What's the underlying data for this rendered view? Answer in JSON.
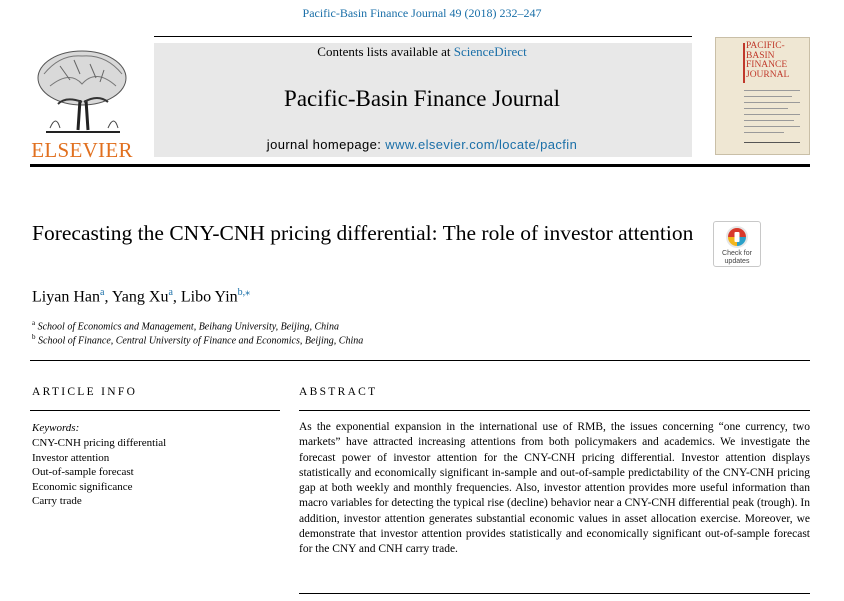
{
  "header": {
    "citation": "Pacific-Basin Finance Journal 49 (2018) 232–247",
    "contents_prefix": "Contents lists available at ",
    "contents_link": "ScienceDirect",
    "journal_title": "Pacific-Basin Finance Journal",
    "homepage_label": "journal homepage: ",
    "homepage_url": "www.elsevier.com/locate/pacfin"
  },
  "publisher_logo": {
    "wordmark": "ELSEVIER",
    "color": "#e1701f"
  },
  "cover": {
    "title_lines": [
      "PACIFIC-",
      "BASIN",
      "FINANCE",
      "JOURNAL"
    ],
    "accent": "#c0392b"
  },
  "check_updates": {
    "line1": "Check for",
    "line2": "updates"
  },
  "article": {
    "title": "Forecasting the CNY-CNH pricing differential: The role of investor attention",
    "authors": [
      {
        "name": "Liyan Han",
        "sup": "a"
      },
      {
        "name": "Yang Xu",
        "sup": "a"
      },
      {
        "name": "Libo Yin",
        "sup": "b,⁎"
      }
    ],
    "affiliations": [
      {
        "sup": "a",
        "text": "School of Economics and Management, Beihang University, Beijing, China"
      },
      {
        "sup": "b",
        "text": "School of Finance, Central University of Finance and Economics, Beijing, China"
      }
    ]
  },
  "article_info": {
    "heading": "ARTICLE INFO",
    "keywords_label": "Keywords:",
    "keywords": [
      "CNY-CNH pricing differential",
      "Investor attention",
      "Out-of-sample forecast",
      "Economic significance",
      "Carry trade"
    ]
  },
  "abstract": {
    "heading": "ABSTRACT",
    "text": "As the exponential expansion in the international use of RMB, the issues concerning “one currency, two markets” have attracted increasing attentions from both policymakers and academics. We investigate the forecast power of investor attention for the CNY-CNH pricing differential. Investor attention displays statistically and economically significant in-sample and out-of-sample predictability of the CNY-CNH pricing gap at both weekly and monthly frequencies. Also, investor attention provides more useful information than macro variables for detecting the typical rise (decline) behavior near a CNY-CNH differential peak (trough). In addition, investor attention generates substantial economic values in asset allocation exercise. Moreover, we demonstrate that investor attention provides statistically and economically significant out-of-sample forecast for the CNY and CNH carry trade."
  }
}
